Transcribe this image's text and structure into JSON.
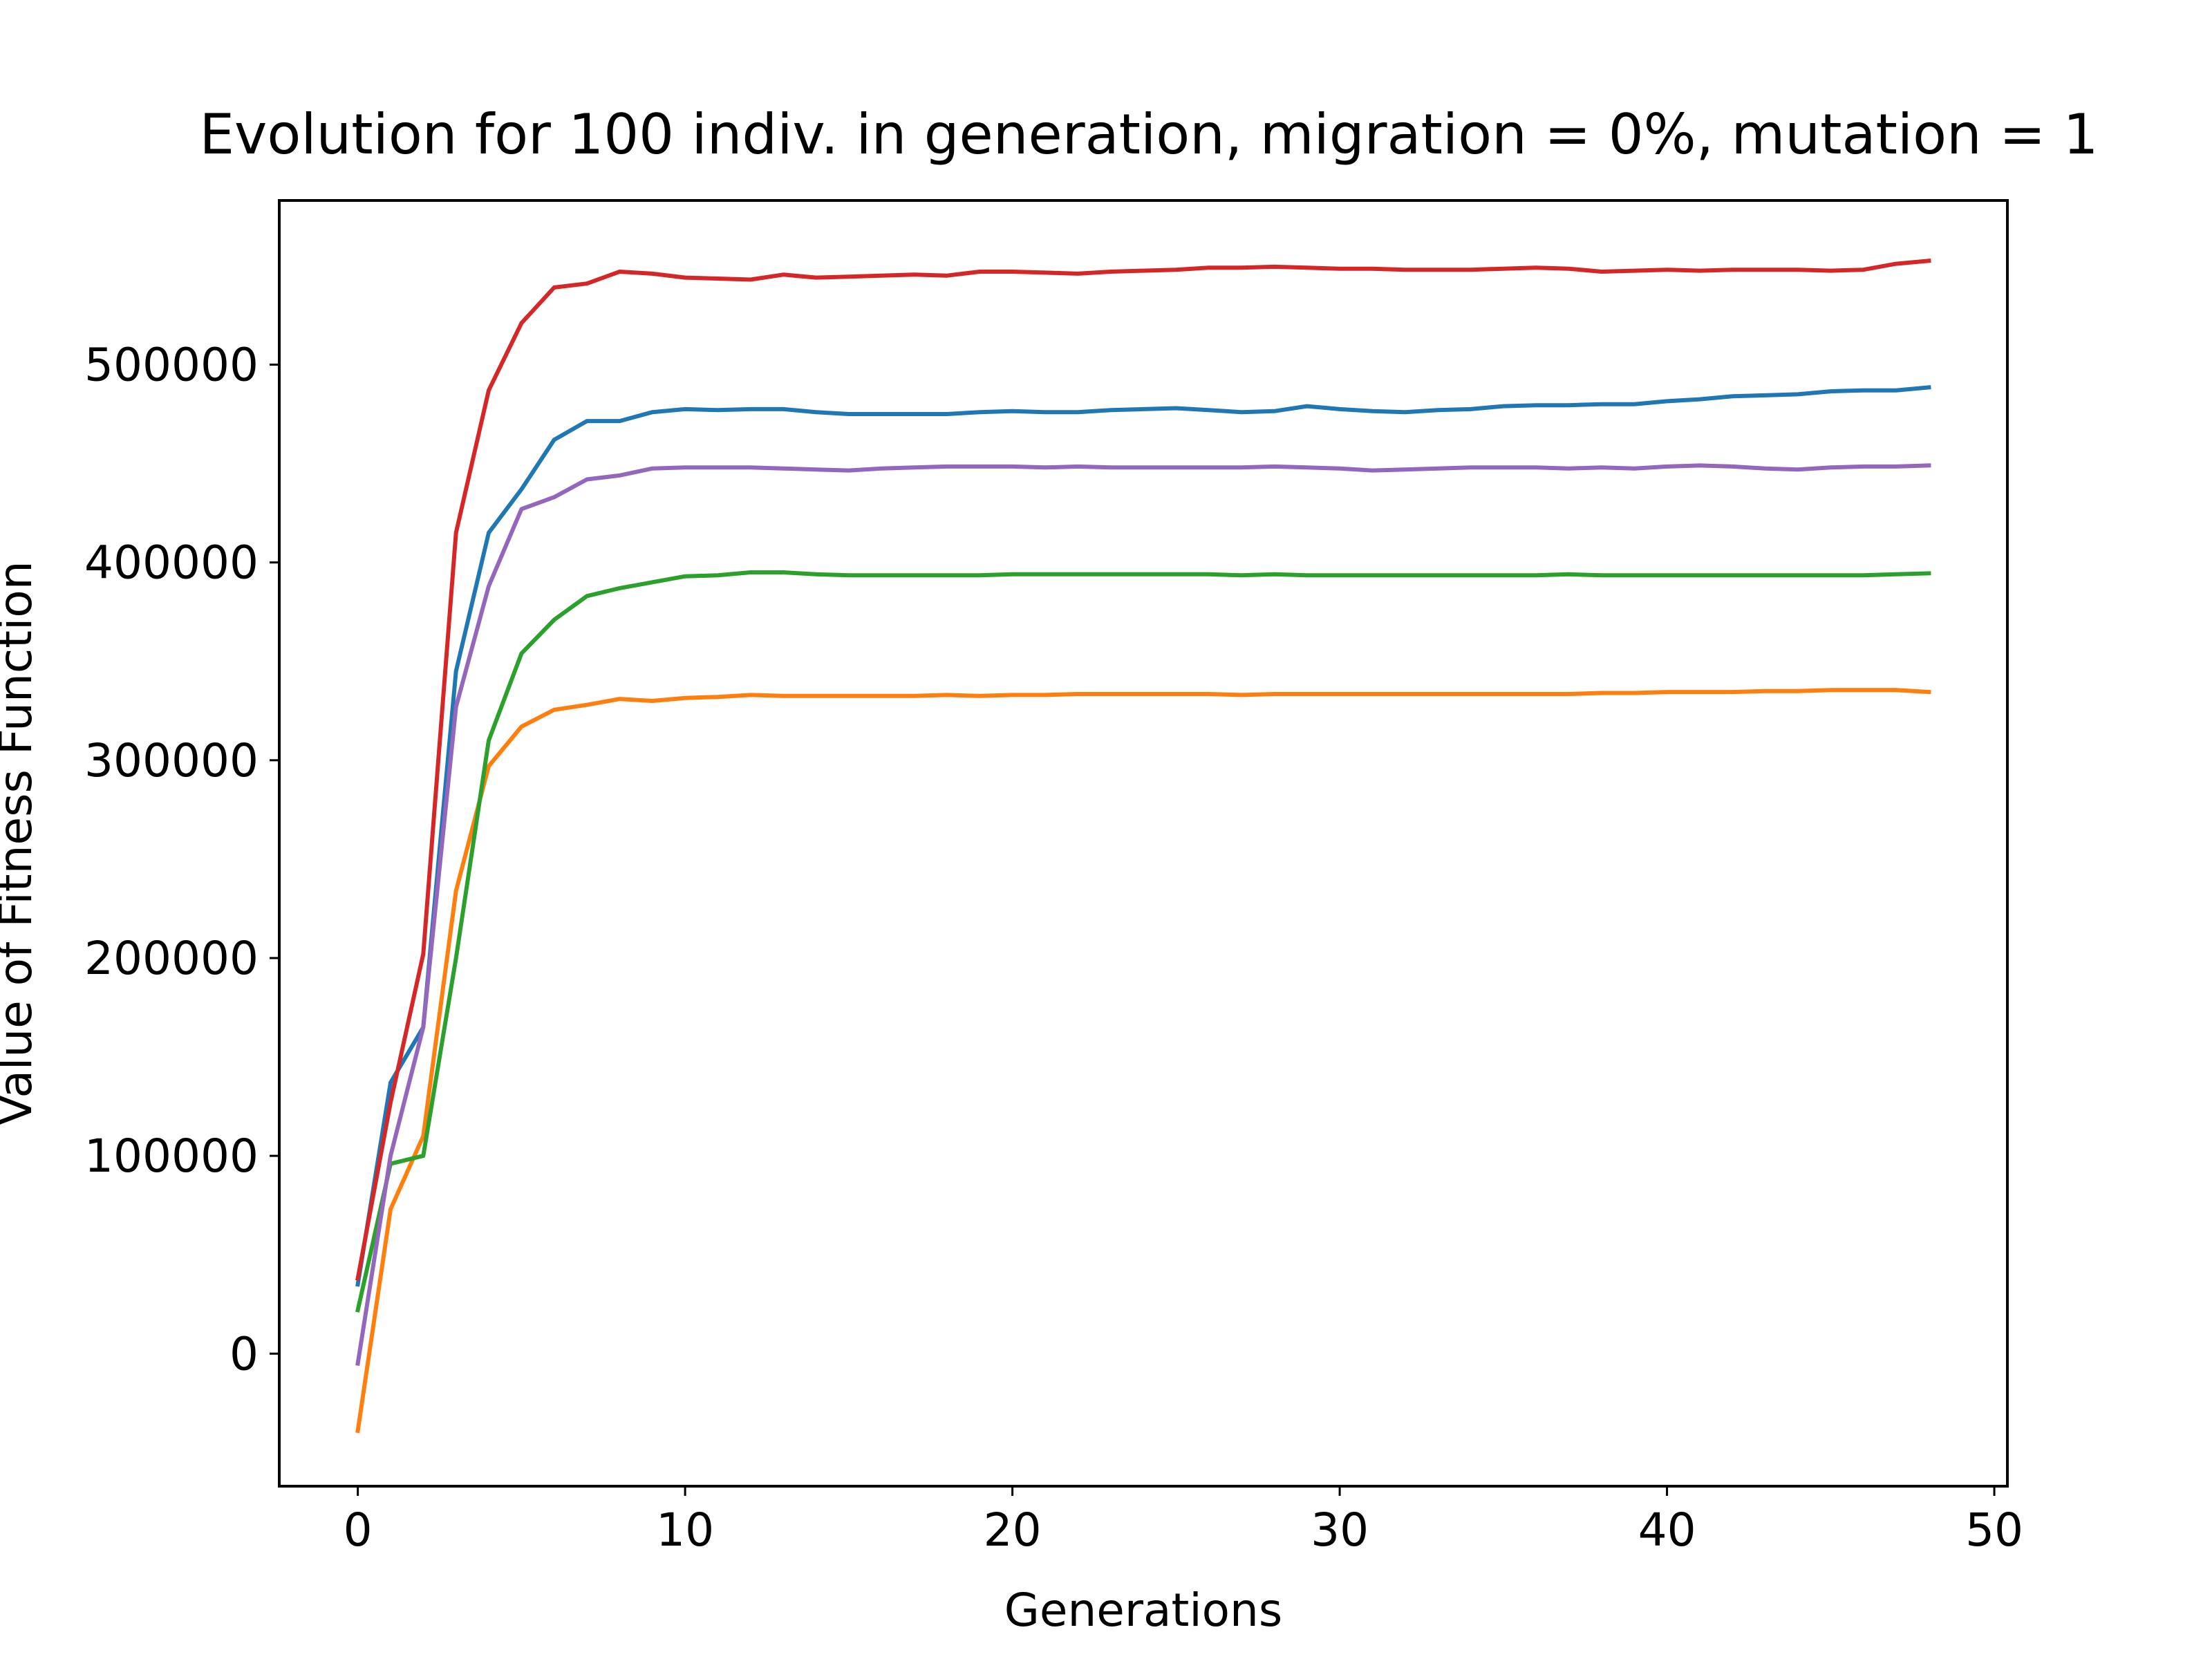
{
  "chart_data": {
    "type": "line",
    "title": "Evolution for 100 indiv. in generation, migration = 0%, mutation = 1",
    "xlabel": "Generations",
    "ylabel": "Value of Fitness Function",
    "xlim": [
      -2.4,
      50.4
    ],
    "ylim": [
      -67000,
      583000
    ],
    "grid": false,
    "legend": "none",
    "xticks": [
      0,
      10,
      20,
      30,
      40,
      50
    ],
    "xtick_labels": [
      "0",
      "10",
      "20",
      "30",
      "40",
      "50"
    ],
    "yticks": [
      0,
      100000,
      200000,
      300000,
      400000,
      500000
    ],
    "ytick_labels": [
      "0",
      "100000",
      "200000",
      "300000",
      "400000",
      "500000"
    ],
    "x": [
      0,
      1,
      2,
      3,
      4,
      5,
      6,
      7,
      8,
      9,
      10,
      11,
      12,
      13,
      14,
      15,
      16,
      17,
      18,
      19,
      20,
      21,
      22,
      23,
      24,
      25,
      26,
      27,
      28,
      29,
      30,
      31,
      32,
      33,
      34,
      35,
      36,
      37,
      38,
      39,
      40,
      41,
      42,
      43,
      44,
      45,
      46,
      47,
      48
    ],
    "series": [
      {
        "color": "#1f77b4",
        "values": [
          35000,
          137000,
          165000,
          345000,
          415000,
          437000,
          462000,
          471500,
          471500,
          476000,
          477500,
          477000,
          477500,
          477500,
          476000,
          475000,
          475000,
          475000,
          475000,
          476000,
          476500,
          476000,
          476000,
          477000,
          477500,
          478000,
          477000,
          476000,
          476500,
          479000,
          477500,
          476500,
          476000,
          477000,
          477500,
          479000,
          479500,
          479500,
          480000,
          480000,
          481500,
          482500,
          484000,
          484500,
          485000,
          486500,
          487000,
          487000,
          488500
        ]
      },
      {
        "color": "#ff7f0e",
        "values": [
          -39000,
          73000,
          110000,
          234000,
          297000,
          317000,
          325500,
          328000,
          331000,
          330000,
          331500,
          332000,
          333000,
          332500,
          332500,
          332500,
          332500,
          332500,
          333000,
          332500,
          333000,
          333000,
          333500,
          333500,
          333500,
          333500,
          333500,
          333000,
          333500,
          333500,
          333500,
          333500,
          333500,
          333500,
          333500,
          333500,
          333500,
          333500,
          334000,
          334000,
          334500,
          334500,
          334500,
          335000,
          335000,
          335500,
          335500,
          335500,
          334500
        ]
      },
      {
        "color": "#2ca02c",
        "values": [
          22000,
          96000,
          100000,
          200000,
          310000,
          354000,
          371000,
          383000,
          387000,
          390000,
          393000,
          393500,
          395000,
          395000,
          394000,
          393500,
          393500,
          393500,
          393500,
          393500,
          394000,
          394000,
          394000,
          394000,
          394000,
          394000,
          394000,
          393500,
          394000,
          393500,
          393500,
          393500,
          393500,
          393500,
          393500,
          393500,
          393500,
          394000,
          393500,
          393500,
          393500,
          393500,
          393500,
          393500,
          393500,
          393500,
          393500,
          394000,
          394500
        ]
      },
      {
        "color": "#d62728",
        "values": [
          38000,
          127000,
          202000,
          415000,
          487000,
          521000,
          539000,
          541000,
          547000,
          546000,
          544000,
          543500,
          543000,
          545500,
          544000,
          544500,
          545000,
          545500,
          545000,
          547000,
          547000,
          546500,
          546000,
          547000,
          547500,
          548000,
          549000,
          549000,
          549500,
          549000,
          548500,
          548500,
          548000,
          548000,
          548000,
          548500,
          549000,
          548500,
          547000,
          547500,
          548000,
          547500,
          548000,
          548000,
          548000,
          547500,
          548000,
          551000,
          552500
        ]
      },
      {
        "color": "#9467bd",
        "values": [
          -5000,
          100000,
          165000,
          327000,
          388000,
          427000,
          433000,
          442000,
          444000,
          447500,
          448000,
          448000,
          448000,
          447500,
          447000,
          446500,
          447500,
          448000,
          448500,
          448500,
          448500,
          448000,
          448500,
          448000,
          448000,
          448000,
          448000,
          448000,
          448500,
          448000,
          447500,
          446500,
          447000,
          447500,
          448000,
          448000,
          448000,
          447500,
          448000,
          447500,
          448500,
          449000,
          448500,
          447500,
          447000,
          448000,
          448500,
          448500,
          449000
        ]
      }
    ]
  }
}
